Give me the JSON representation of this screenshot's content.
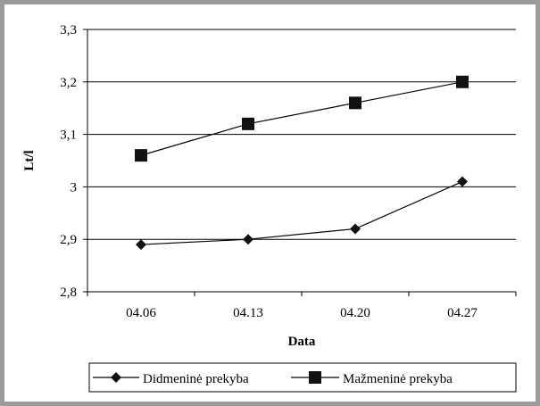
{
  "chart_data": {
    "type": "line",
    "categories": [
      "04.06",
      "04.13",
      "04.20",
      "04.27"
    ],
    "series": [
      {
        "name": "Didmeninė prekyba",
        "marker": "diamond",
        "values": [
          2.89,
          2.9,
          2.92,
          3.01
        ]
      },
      {
        "name": "Mažmeninė prekyba",
        "marker": "square",
        "values": [
          3.06,
          3.12,
          3.16,
          3.2
        ]
      }
    ],
    "xlabel": "Data",
    "ylabel": "Lt/l",
    "ylim": [
      2.8,
      3.3
    ],
    "yticks": [
      "2,8",
      "2,9",
      "3",
      "3,1",
      "3,2",
      "3,3"
    ],
    "ytick_values": [
      2.8,
      2.9,
      3.0,
      3.1,
      3.2,
      3.3
    ],
    "grid": "horizontal",
    "legend": "bottom",
    "colors": {
      "line": "#000000",
      "grid": "#000000",
      "frame": "#9b9b9b"
    }
  }
}
